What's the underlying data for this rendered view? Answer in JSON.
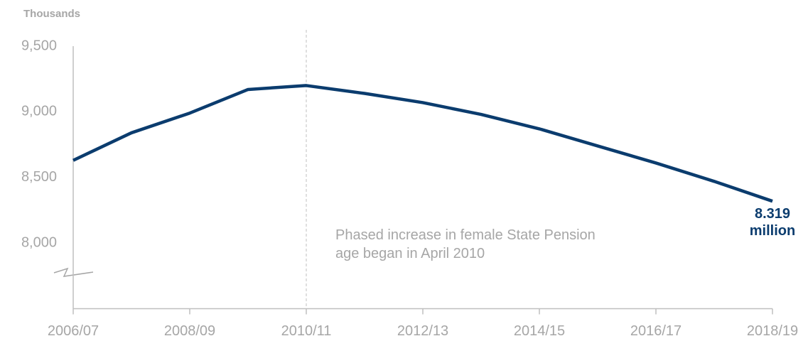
{
  "chart_data": {
    "type": "line",
    "ylabel": "Thousands",
    "categories": [
      "2006/07",
      null,
      "2008/09",
      null,
      "2010/11",
      null,
      "2012/13",
      null,
      "2014/15",
      null,
      "2016/17",
      null,
      "2018/19"
    ],
    "series": [
      {
        "name": null,
        "color": "#0b3c6e",
        "values": [
          8630,
          8840,
          8990,
          9170,
          9200,
          9140,
          9070,
          8980,
          8870,
          8740,
          8610,
          8470,
          8319
        ],
        "value_labels": [
          null,
          null,
          null,
          null,
          null,
          null,
          null,
          null,
          null,
          null,
          null,
          null,
          "8.319 million"
        ]
      }
    ],
    "ylim": [
      7500,
      9500
    ],
    "yticks": [
      {
        "value": 8000,
        "label": "8,000"
      },
      {
        "value": 8500,
        "label": "8,500"
      },
      {
        "value": 9000,
        "label": "9,000"
      },
      {
        "value": 9500,
        "label": "9,500"
      }
    ],
    "annotation": {
      "text": "Phased increase in female State Pension age began in April 2010",
      "at": 4
    }
  }
}
